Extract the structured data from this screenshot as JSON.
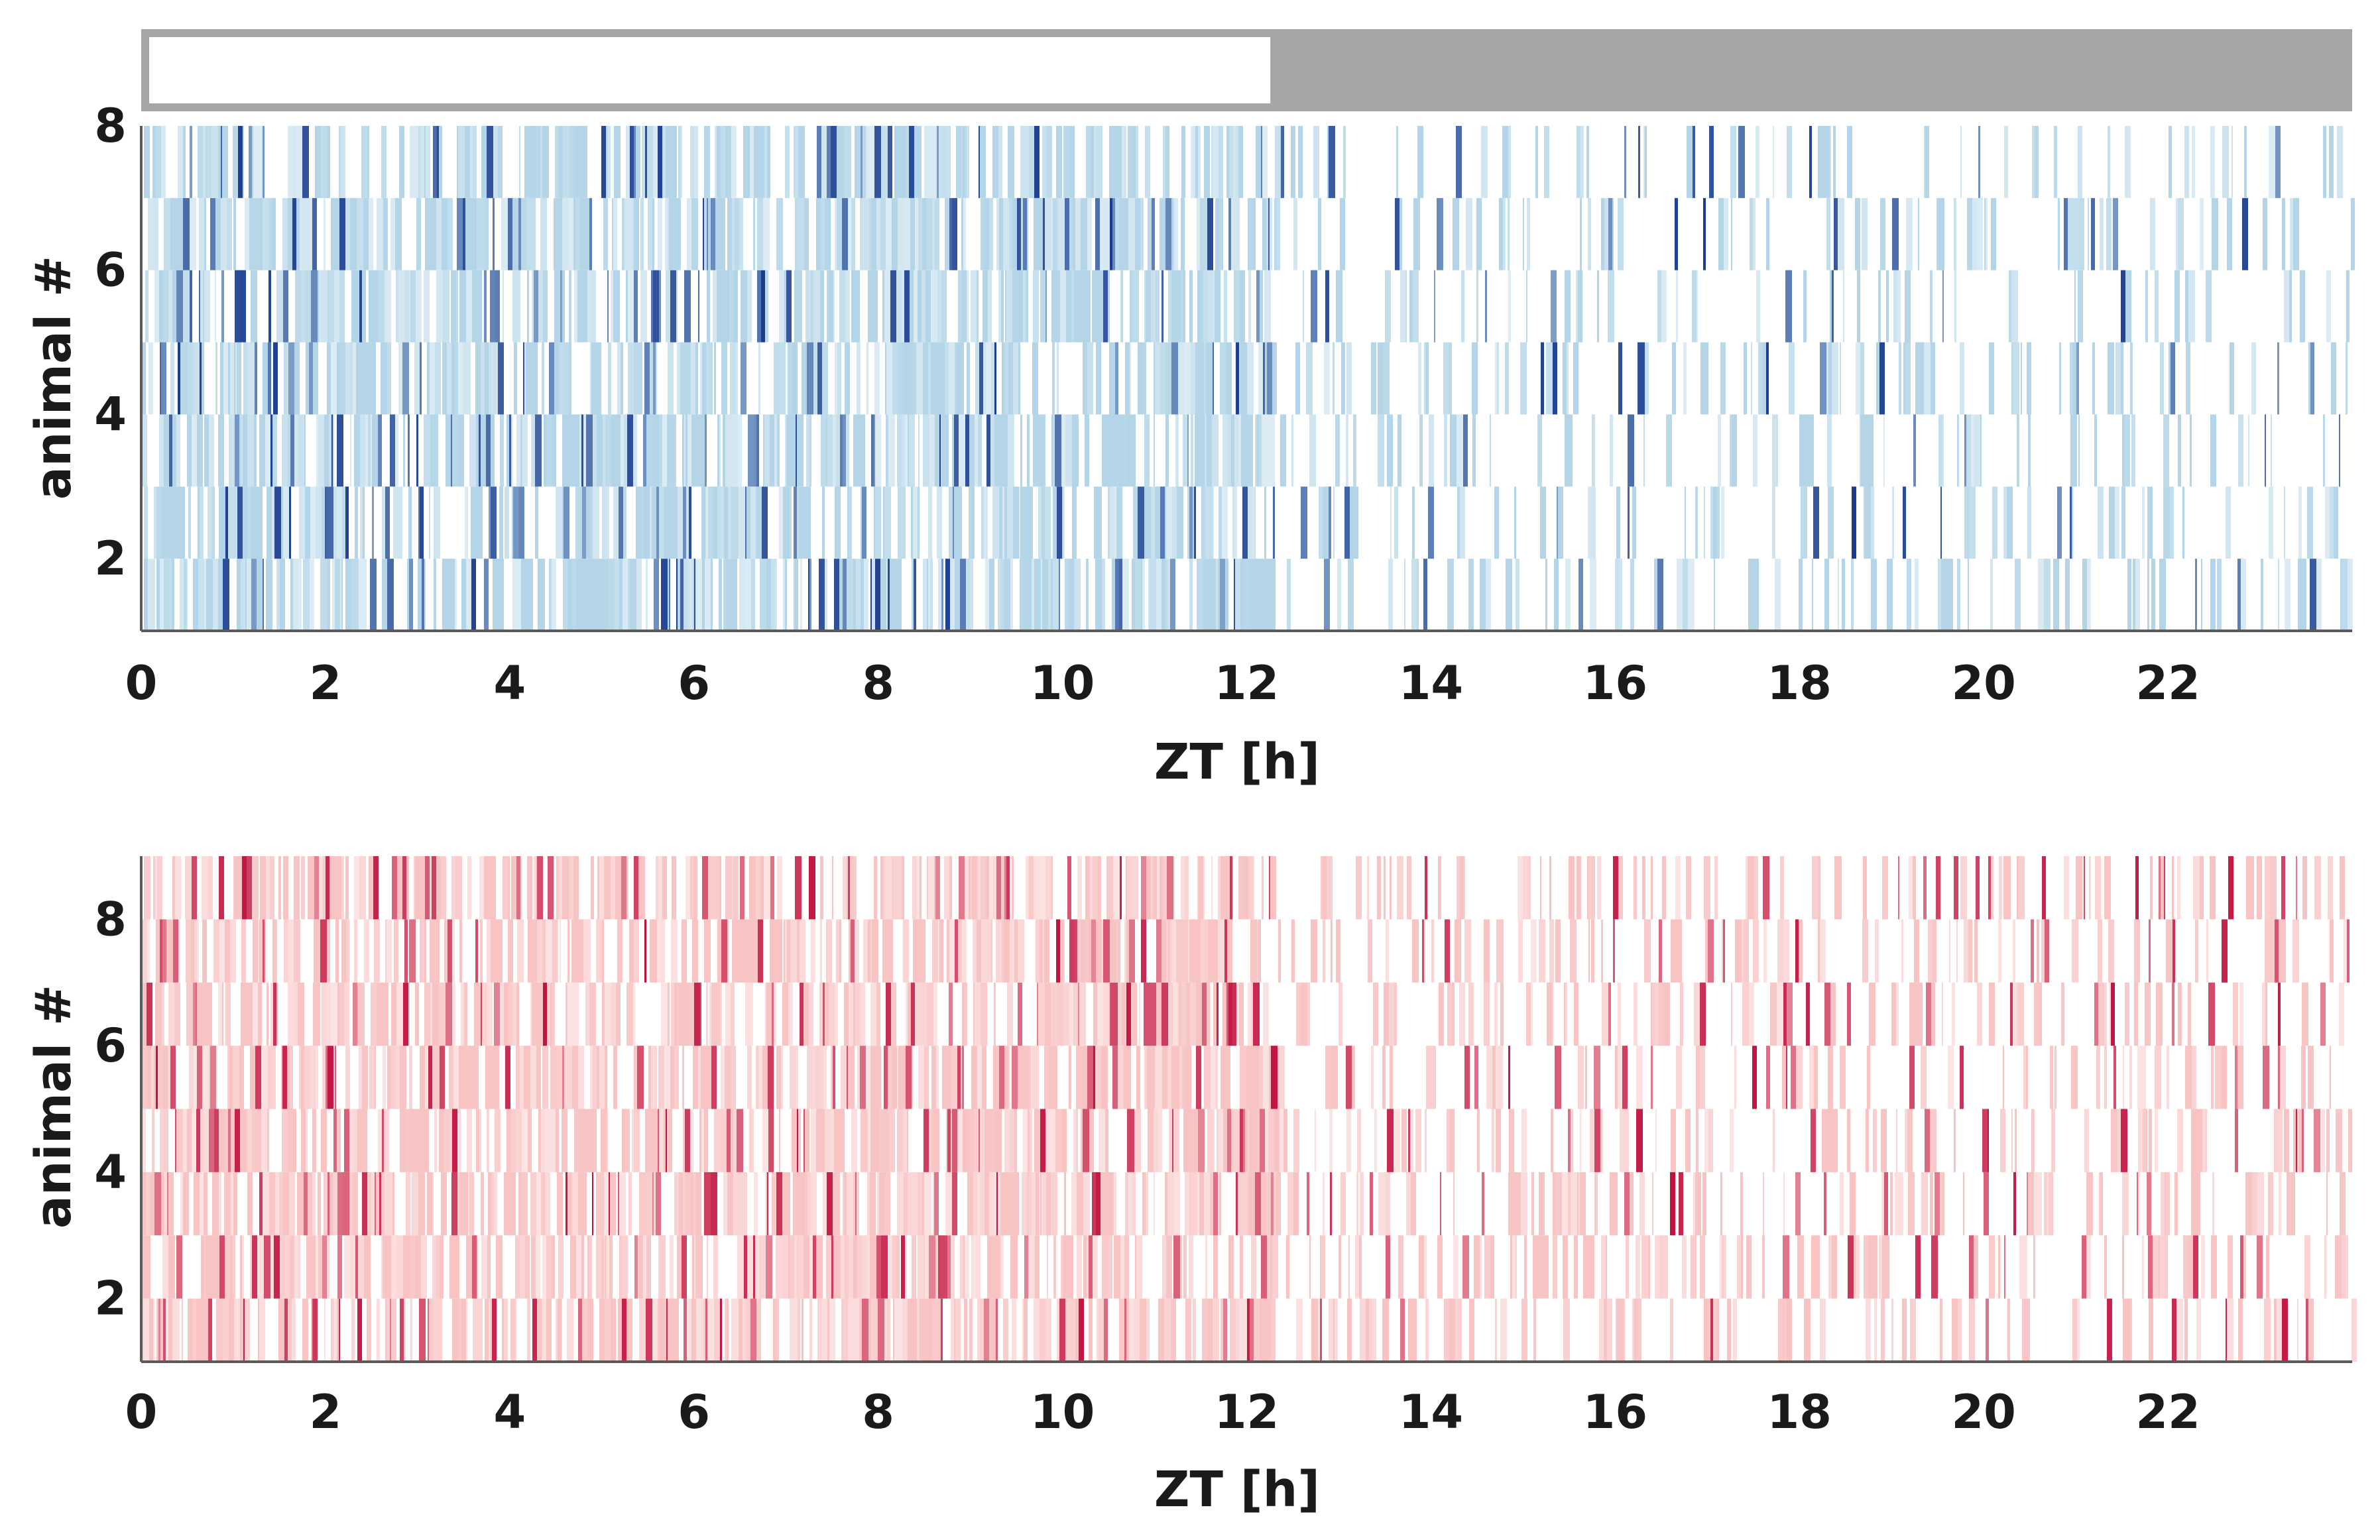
{
  "light_dark_bar": {
    "light": {
      "from": 0,
      "to": 12.3,
      "color": "#ffffff",
      "border": "#a6a6a6"
    },
    "dark": {
      "from": 12.3,
      "to": 24,
      "color": "#a6a6a6"
    }
  },
  "chart_data": [
    {
      "type": "heatmap",
      "xlabel": "ZT [h]",
      "ylabel": "animal #",
      "xlim": [
        0,
        24
      ],
      "ylim": [
        1,
        8
      ],
      "xticks": [
        0,
        2,
        4,
        6,
        8,
        10,
        12,
        14,
        16,
        18,
        20,
        22
      ],
      "xtick_labels": [
        "0",
        "2",
        "4",
        "6",
        "8",
        "10",
        "12",
        "14",
        "16",
        "18",
        "20",
        "22"
      ],
      "yticks": [
        2,
        4,
        6,
        8
      ],
      "ytick_labels": [
        "2",
        "4",
        "6",
        "8"
      ],
      "rows": [
        1,
        2,
        3,
        4,
        5,
        6,
        7
      ],
      "grid": false,
      "colormap": {
        "low": "#ffffff",
        "mid": "#b3d5e7",
        "high": "#1c3d8f"
      },
      "light_phase_density": 0.72,
      "dark_phase_density": 0.26,
      "pattern_seed": 17
    },
    {
      "type": "heatmap",
      "xlabel": "ZT [h]",
      "ylabel": "animal #",
      "xlim": [
        0,
        24
      ],
      "ylim": [
        1,
        9
      ],
      "xticks": [
        0,
        2,
        4,
        6,
        8,
        10,
        12,
        14,
        16,
        18,
        20,
        22
      ],
      "xtick_labels": [
        "0",
        "2",
        "4",
        "6",
        "8",
        "10",
        "12",
        "14",
        "16",
        "18",
        "20",
        "22"
      ],
      "yticks": [
        2,
        4,
        6,
        8
      ],
      "ytick_labels": [
        "2",
        "4",
        "6",
        "8"
      ],
      "rows": [
        1,
        2,
        3,
        4,
        5,
        6,
        7,
        8
      ],
      "grid": false,
      "colormap": {
        "low": "#ffffff",
        "mid": "#f8c3c3",
        "high": "#c0123f"
      },
      "light_phase_density": 0.74,
      "dark_phase_density": 0.33,
      "pattern_seed": 53
    }
  ]
}
